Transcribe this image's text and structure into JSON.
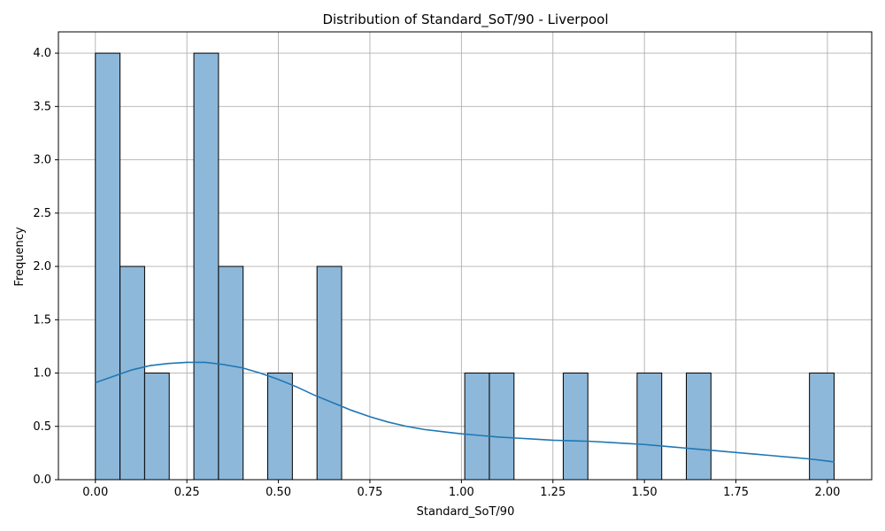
{
  "chart_data": {
    "type": "bar",
    "title": "Distribution of Standard_SoT/90 - Liverpool",
    "xlabel": "Standard_SoT/90",
    "ylabel": "Frequency",
    "xlim": [
      -0.101,
      2.121
    ],
    "ylim": [
      0,
      4.2
    ],
    "grid": true,
    "bin_width": 0.06727,
    "bins": [
      {
        "start": 0.0,
        "count": 4
      },
      {
        "start": 0.0673,
        "count": 2
      },
      {
        "start": 0.1345,
        "count": 1
      },
      {
        "start": 0.2018,
        "count": 0
      },
      {
        "start": 0.2691,
        "count": 4
      },
      {
        "start": 0.3364,
        "count": 2
      },
      {
        "start": 0.4036,
        "count": 0
      },
      {
        "start": 0.4709,
        "count": 1
      },
      {
        "start": 0.5382,
        "count": 0
      },
      {
        "start": 0.6055,
        "count": 2
      },
      {
        "start": 0.6727,
        "count": 0
      },
      {
        "start": 0.74,
        "count": 0
      },
      {
        "start": 0.8073,
        "count": 0
      },
      {
        "start": 0.8745,
        "count": 0
      },
      {
        "start": 0.9418,
        "count": 0
      },
      {
        "start": 1.0091,
        "count": 1
      },
      {
        "start": 1.0764,
        "count": 1
      },
      {
        "start": 1.1436,
        "count": 0
      },
      {
        "start": 1.2109,
        "count": 0
      },
      {
        "start": 1.2782,
        "count": 1
      },
      {
        "start": 1.3455,
        "count": 0
      },
      {
        "start": 1.4127,
        "count": 0
      },
      {
        "start": 1.48,
        "count": 1
      },
      {
        "start": 1.5473,
        "count": 0
      },
      {
        "start": 1.6145,
        "count": 1
      },
      {
        "start": 1.6818,
        "count": 0
      },
      {
        "start": 1.7491,
        "count": 0
      },
      {
        "start": 1.8164,
        "count": 0
      },
      {
        "start": 1.8836,
        "count": 0
      },
      {
        "start": 1.9509,
        "count": 1
      }
    ],
    "kde": {
      "x": [
        0.0,
        0.05,
        0.1,
        0.15,
        0.2,
        0.25,
        0.3,
        0.35,
        0.4,
        0.45,
        0.5,
        0.55,
        0.6,
        0.65,
        0.7,
        0.75,
        0.8,
        0.85,
        0.9,
        0.95,
        1.0,
        1.05,
        1.1,
        1.15,
        1.2,
        1.25,
        1.3,
        1.35,
        1.4,
        1.45,
        1.5,
        1.55,
        1.6,
        1.65,
        1.7,
        1.75,
        1.8,
        1.85,
        1.9,
        1.95,
        2.0,
        2.02
      ],
      "y": [
        0.91,
        0.97,
        1.03,
        1.07,
        1.09,
        1.1,
        1.1,
        1.08,
        1.05,
        1.0,
        0.94,
        0.87,
        0.79,
        0.72,
        0.65,
        0.59,
        0.54,
        0.5,
        0.47,
        0.45,
        0.43,
        0.415,
        0.4,
        0.39,
        0.38,
        0.37,
        0.365,
        0.36,
        0.35,
        0.34,
        0.33,
        0.315,
        0.3,
        0.285,
        0.27,
        0.255,
        0.24,
        0.225,
        0.21,
        0.195,
        0.175,
        0.165
      ]
    },
    "x_ticks": [
      "0.00",
      "0.25",
      "0.50",
      "0.75",
      "1.00",
      "1.25",
      "1.50",
      "1.75",
      "2.00"
    ],
    "x_tick_values": [
      0.0,
      0.25,
      0.5,
      0.75,
      1.0,
      1.25,
      1.5,
      1.75,
      2.0
    ],
    "y_ticks": [
      "0.0",
      "0.5",
      "1.0",
      "1.5",
      "2.0",
      "2.5",
      "3.0",
      "3.5",
      "4.0"
    ],
    "y_tick_values": [
      0.0,
      0.5,
      1.0,
      1.5,
      2.0,
      2.5,
      3.0,
      3.5,
      4.0
    ],
    "colors": {
      "bar_fill": "#8db8da",
      "bar_edge": "#000000",
      "kde_line": "#1f77b4",
      "grid": "#b0b0b0"
    }
  }
}
